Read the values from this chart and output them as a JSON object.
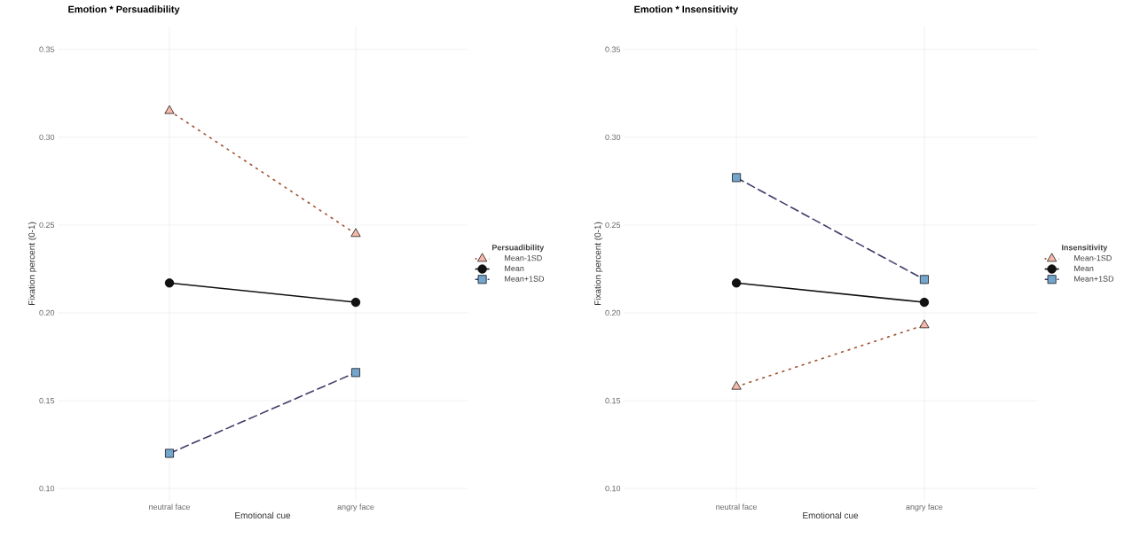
{
  "chart_data": [
    {
      "type": "line",
      "title": "Emotion * Persuadibility",
      "xlabel": "Emotional cue",
      "ylabel": "Fixation percent (0-1)",
      "legend_title": "Persuadibility",
      "legend": "right",
      "grid": true,
      "categories": [
        "neutral face",
        "angry face"
      ],
      "ylim": [
        0.093,
        0.363
      ],
      "yticks": [
        {
          "value": 0.1,
          "label": "0.10"
        },
        {
          "value": 0.15,
          "label": "0.15"
        },
        {
          "value": 0.2,
          "label": "0.20"
        },
        {
          "value": 0.25,
          "label": "0.25"
        },
        {
          "value": 0.3,
          "label": "0.30"
        },
        {
          "value": 0.35,
          "label": "0.35"
        }
      ],
      "series": [
        {
          "name": "Mean-1SD",
          "color": "#a0522d",
          "colors": [
            "#f4b9a8",
            "#f4b9a8"
          ],
          "marker": "triangle",
          "line_style": "dotted",
          "values": [
            0.315,
            0.245
          ]
        },
        {
          "name": "Mean",
          "color": "#111111",
          "colors": [
            "#111111",
            "#111111"
          ],
          "marker": "circle",
          "line_style": "solid",
          "values": [
            0.217,
            0.206
          ]
        },
        {
          "name": "Mean+1SD",
          "color": "#3f3d6b",
          "colors": [
            "#74a5cc",
            "#74a5cc"
          ],
          "marker": "square",
          "line_style": "dashed",
          "values": [
            0.12,
            0.166
          ]
        }
      ]
    },
    {
      "type": "line",
      "title": "Emotion * Insensitivity",
      "xlabel": "Emotional cue",
      "ylabel": "Fixation percent (0-1)",
      "legend_title": "Insensitivity",
      "legend": "right",
      "grid": true,
      "categories": [
        "neutral face",
        "angry face"
      ],
      "ylim": [
        0.093,
        0.363
      ],
      "yticks": [
        {
          "value": 0.1,
          "label": "0.10"
        },
        {
          "value": 0.15,
          "label": "0.15"
        },
        {
          "value": 0.2,
          "label": "0.20"
        },
        {
          "value": 0.25,
          "label": "0.25"
        },
        {
          "value": 0.3,
          "label": "0.30"
        },
        {
          "value": 0.35,
          "label": "0.35"
        }
      ],
      "series": [
        {
          "name": "Mean-1SD",
          "color": "#a0522d",
          "colors": [
            "#f4b9a8",
            "#f4b9a8"
          ],
          "marker": "triangle",
          "line_style": "dotted",
          "values": [
            0.158,
            0.193
          ]
        },
        {
          "name": "Mean",
          "color": "#111111",
          "colors": [
            "#111111",
            "#111111"
          ],
          "marker": "circle",
          "line_style": "solid",
          "values": [
            0.217,
            0.206
          ]
        },
        {
          "name": "Mean+1SD",
          "color": "#3f3d6b",
          "colors": [
            "#74a5cc",
            "#74a5cc"
          ],
          "marker": "square",
          "line_style": "dashed",
          "values": [
            0.277,
            0.219
          ]
        }
      ]
    }
  ]
}
